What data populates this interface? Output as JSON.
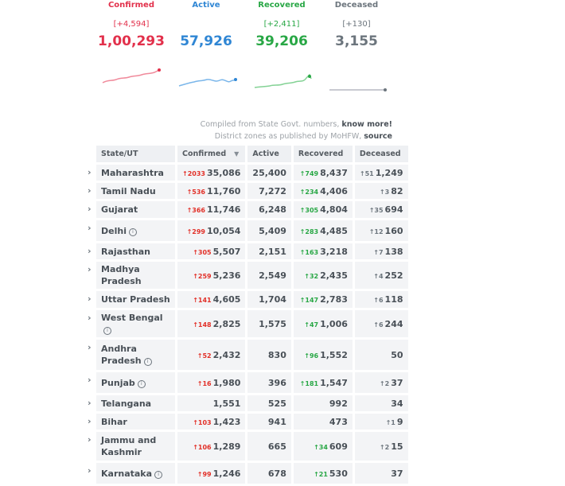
{
  "stats": {
    "confirmed": {
      "label": "Confirmed",
      "delta": "[+4,594]",
      "value": "1,00,293",
      "color": "#e2304b"
    },
    "active": {
      "label": "Active",
      "delta": "",
      "value": "57,926",
      "color": "#2f86d4"
    },
    "recovered": {
      "label": "Recovered",
      "delta": "[+2,411]",
      "value": "39,206",
      "color": "#28a745"
    },
    "deceased": {
      "label": "Deceased",
      "delta": "[+130]",
      "value": "3,155",
      "color": "#6c757d"
    }
  },
  "notes": {
    "line1_text": "Compiled from State Govt. numbers,",
    "line1_link": "know more!",
    "line2_text": "District zones as published by MoHFW,",
    "line2_link": "source"
  },
  "table": {
    "headers": {
      "state": "State/UT",
      "confirmed": "Confirmed",
      "active": "Active",
      "recovered": "Recovered",
      "deceased": "Deceased"
    },
    "rows": [
      {
        "state": "Maharashtra",
        "info": false,
        "cd": "2033",
        "c": "35,086",
        "a": "25,400",
        "rd": "749",
        "r": "8,437",
        "dd": "51",
        "d": "1,249"
      },
      {
        "state": "Tamil Nadu",
        "info": false,
        "cd": "536",
        "c": "11,760",
        "a": "7,272",
        "rd": "234",
        "r": "4,406",
        "dd": "3",
        "d": "82"
      },
      {
        "state": "Gujarat",
        "info": false,
        "cd": "366",
        "c": "11,746",
        "a": "6,248",
        "rd": "305",
        "r": "4,804",
        "dd": "35",
        "d": "694"
      },
      {
        "state": "Delhi",
        "info": true,
        "cd": "299",
        "c": "10,054",
        "a": "5,409",
        "rd": "283",
        "r": "4,485",
        "dd": "12",
        "d": "160"
      },
      {
        "state": "Rajasthan",
        "info": false,
        "cd": "305",
        "c": "5,507",
        "a": "2,151",
        "rd": "163",
        "r": "3,218",
        "dd": "7",
        "d": "138"
      },
      {
        "state": "Madhya Pradesh",
        "info": false,
        "cd": "259",
        "c": "5,236",
        "a": "2,549",
        "rd": "32",
        "r": "2,435",
        "dd": "4",
        "d": "252"
      },
      {
        "state": "Uttar Pradesh",
        "info": false,
        "cd": "141",
        "c": "4,605",
        "a": "1,704",
        "rd": "147",
        "r": "2,783",
        "dd": "6",
        "d": "118"
      },
      {
        "state": "West Bengal",
        "info": true,
        "cd": "148",
        "c": "2,825",
        "a": "1,575",
        "rd": "47",
        "r": "1,006",
        "dd": "6",
        "d": "244"
      },
      {
        "state": "Andhra Pradesh",
        "info": true,
        "cd": "52",
        "c": "2,432",
        "a": "830",
        "rd": "96",
        "r": "1,552",
        "dd": "",
        "d": "50"
      },
      {
        "state": "Punjab",
        "info": true,
        "cd": "16",
        "c": "1,980",
        "a": "396",
        "rd": "181",
        "r": "1,547",
        "dd": "2",
        "d": "37"
      },
      {
        "state": "Telangana",
        "info": false,
        "cd": "",
        "c": "1,551",
        "a": "525",
        "rd": "",
        "r": "992",
        "dd": "",
        "d": "34"
      },
      {
        "state": "Bihar",
        "info": false,
        "cd": "103",
        "c": "1,423",
        "a": "941",
        "rd": "",
        "r": "473",
        "dd": "1",
        "d": "9"
      },
      {
        "state": "Jammu and Kashmir",
        "info": false,
        "cd": "106",
        "c": "1,289",
        "a": "665",
        "rd": "34",
        "r": "609",
        "dd": "2",
        "d": "15"
      },
      {
        "state": "Karnataka",
        "info": true,
        "cd": "99",
        "c": "1,246",
        "a": "678",
        "rd": "21",
        "r": "530",
        "dd": "",
        "d": "37"
      }
    ]
  }
}
